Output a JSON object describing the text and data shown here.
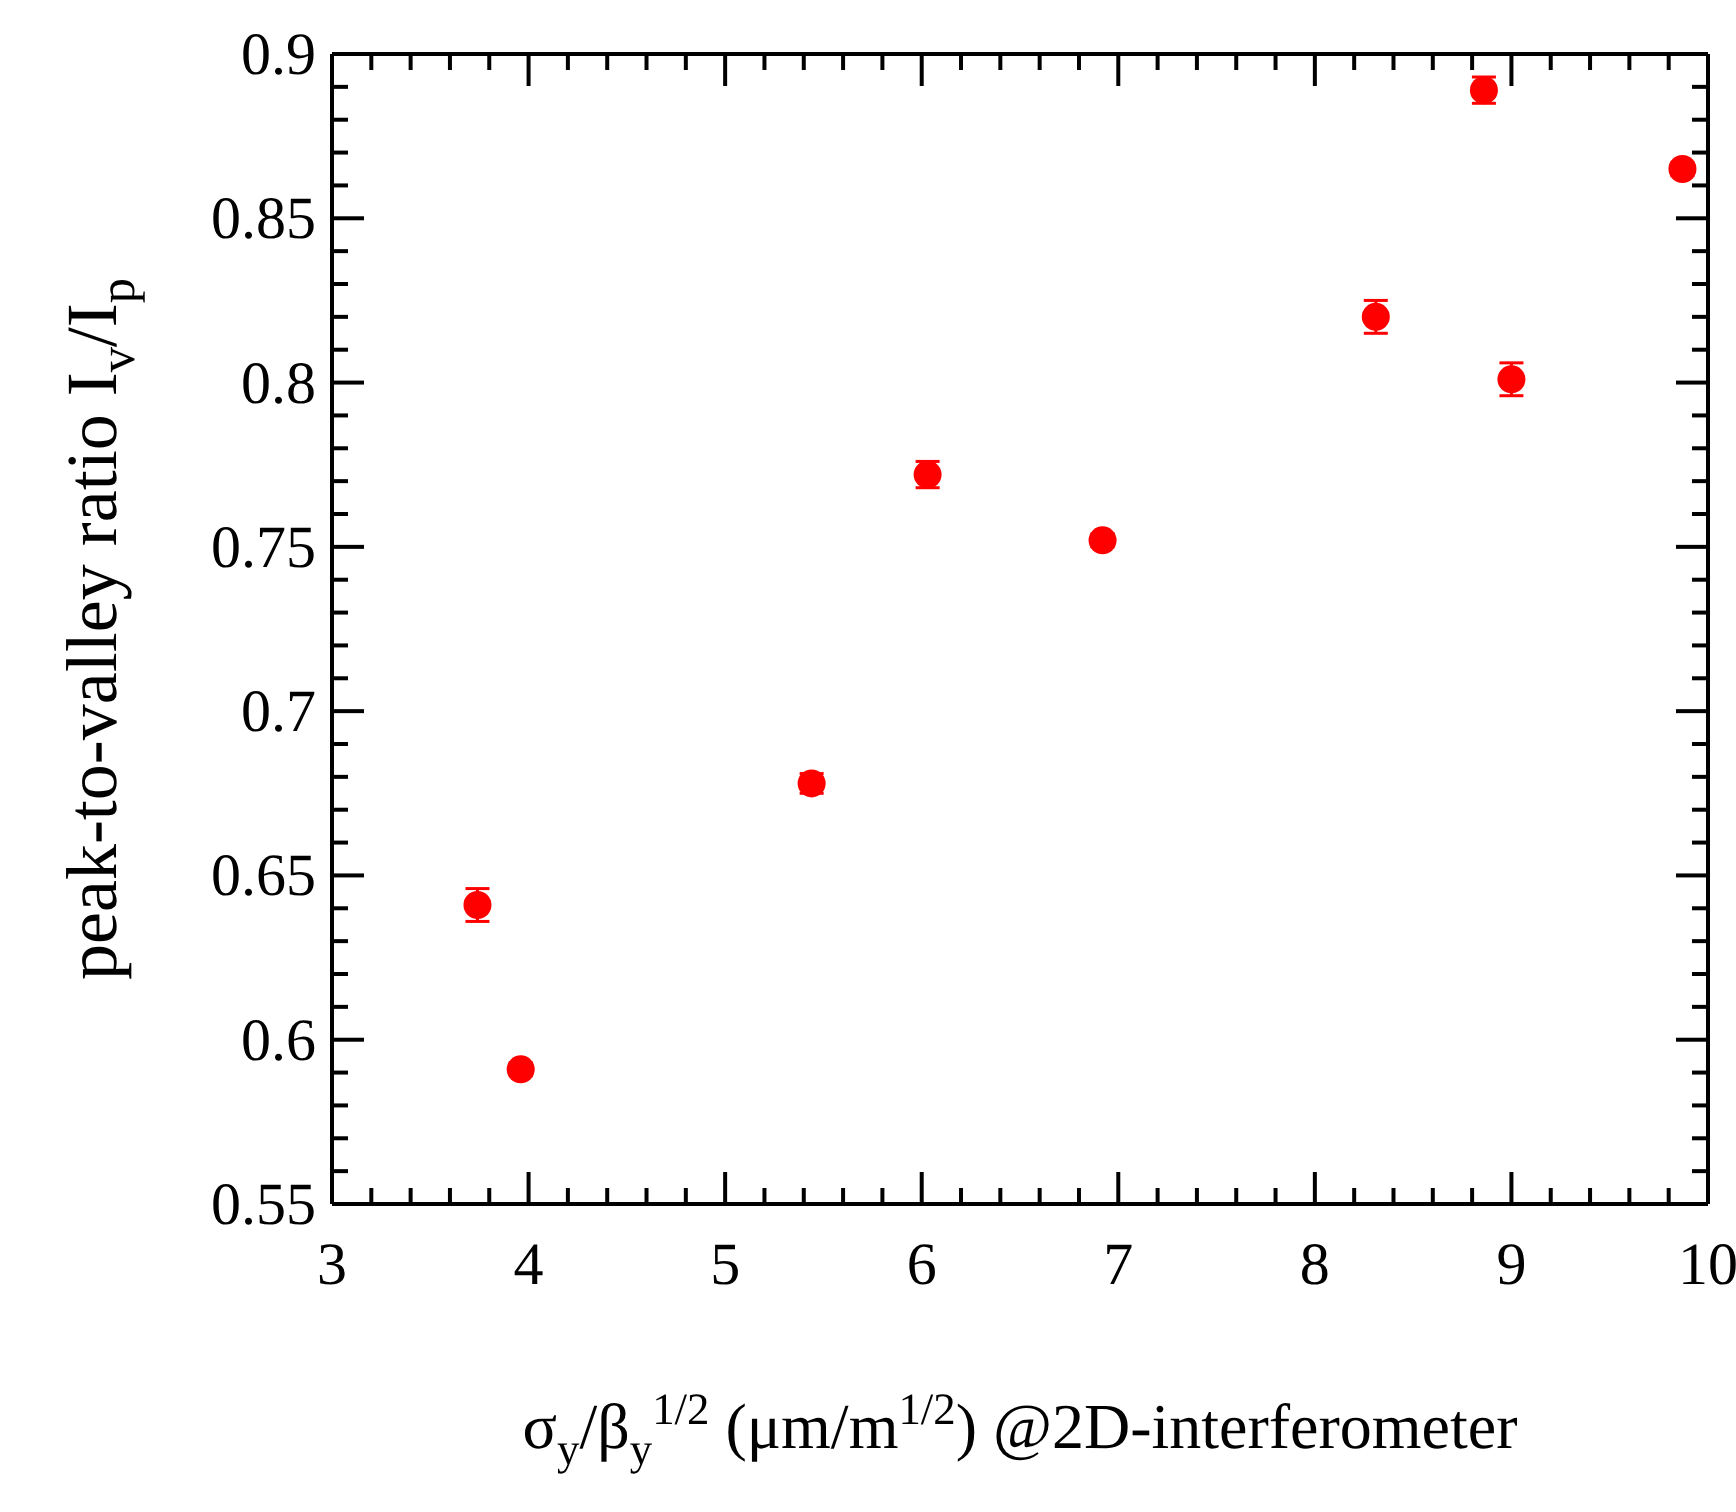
{
  "chart_data": {
    "type": "scatter",
    "xlabel": "σ$_{y}$/β$_{y}$$^{1/2}$ (μm/m$^{1/2}$) @2D-interferometer",
    "ylabel": "peak-to-valley ratio I$_{v}$/I$_{p}$",
    "x": [
      3.74,
      3.96,
      5.44,
      6.03,
      6.92,
      8.31,
      8.86,
      9.0,
      9.87
    ],
    "values": [
      0.641,
      0.591,
      0.678,
      0.772,
      0.752,
      0.82,
      0.889,
      0.801,
      0.865
    ],
    "errors": [
      0.005,
      0.002,
      0.003,
      0.004,
      0.002,
      0.005,
      0.004,
      0.005,
      0.002
    ],
    "color": "#ff0000",
    "marker": "circle",
    "xlim": [
      3,
      10
    ],
    "ylim": [
      0.55,
      0.9
    ],
    "xticks": [
      3,
      {
        "value": 3.2,
        "label": null
      },
      {
        "value": 3.4,
        "label": null
      },
      {
        "value": 3.6,
        "label": null
      },
      {
        "value": 3.8,
        "label": null
      },
      4,
      {
        "value": 4.2,
        "label": null
      },
      {
        "value": 4.4,
        "label": null
      },
      {
        "value": 4.6,
        "label": null
      },
      {
        "value": 4.8,
        "label": null
      },
      5,
      {
        "value": 5.2,
        "label": null
      },
      {
        "value": 5.4,
        "label": null
      },
      {
        "value": 5.6,
        "label": null
      },
      {
        "value": 5.8,
        "label": null
      },
      6,
      {
        "value": 6.2,
        "label": null
      },
      {
        "value": 6.4,
        "label": null
      },
      {
        "value": 6.6,
        "label": null
      },
      {
        "value": 6.8,
        "label": null
      },
      7,
      {
        "value": 7.2,
        "label": null
      },
      {
        "value": 7.4,
        "label": null
      },
      {
        "value": 7.6,
        "label": null
      },
      {
        "value": 7.8,
        "label": null
      },
      8,
      {
        "value": 8.2,
        "label": null
      },
      {
        "value": 8.4,
        "label": null
      },
      {
        "value": 8.6,
        "label": null
      },
      {
        "value": 8.8,
        "label": null
      },
      9,
      {
        "value": 9.2,
        "label": null
      },
      {
        "value": 9.4,
        "label": null
      },
      {
        "value": 9.6,
        "label": null
      },
      {
        "value": 9.8,
        "label": null
      },
      10
    ],
    "yticks": [
      0.55,
      {
        "value": 0.56,
        "label": null
      },
      {
        "value": 0.57,
        "label": null
      },
      {
        "value": 0.58,
        "label": null
      },
      {
        "value": 0.59,
        "label": null
      },
      0.6,
      {
        "value": 0.61,
        "label": null
      },
      {
        "value": 0.62,
        "label": null
      },
      {
        "value": 0.63,
        "label": null
      },
      {
        "value": 0.64,
        "label": null
      },
      0.65,
      {
        "value": 0.66,
        "label": null
      },
      {
        "value": 0.67,
        "label": null
      },
      {
        "value": 0.68,
        "label": null
      },
      {
        "value": 0.69,
        "label": null
      },
      0.7,
      {
        "value": 0.71,
        "label": null
      },
      {
        "value": 0.72,
        "label": null
      },
      {
        "value": 0.73,
        "label": null
      },
      {
        "value": 0.74,
        "label": null
      },
      0.75,
      {
        "value": 0.76,
        "label": null
      },
      {
        "value": 0.77,
        "label": null
      },
      {
        "value": 0.78,
        "label": null
      },
      {
        "value": 0.79,
        "label": null
      },
      0.8,
      {
        "value": 0.81,
        "label": null
      },
      {
        "value": 0.82,
        "label": null
      },
      {
        "value": 0.83,
        "label": null
      },
      {
        "value": 0.84,
        "label": null
      },
      0.85,
      {
        "value": 0.86,
        "label": null
      },
      {
        "value": 0.87,
        "label": null
      },
      {
        "value": 0.88,
        "label": null
      },
      {
        "value": 0.89,
        "label": null
      },
      0.9
    ]
  }
}
